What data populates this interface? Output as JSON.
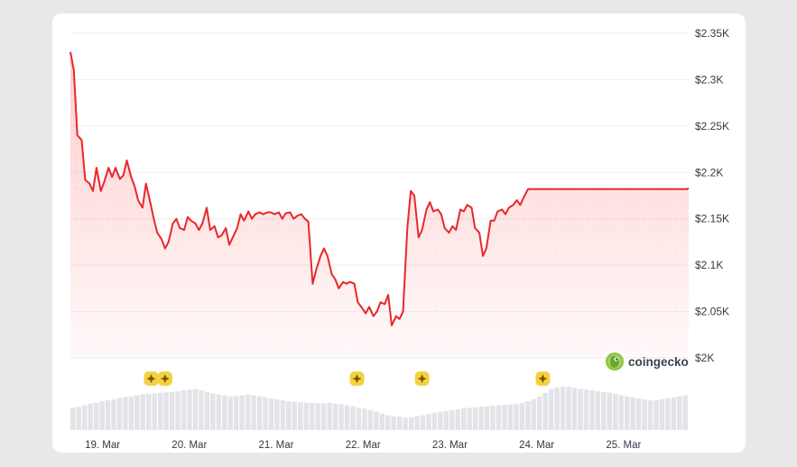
{
  "chart_data": {
    "type": "line",
    "title": "",
    "xlabel": "",
    "ylabel": "",
    "ylim": [
      2000,
      2350
    ],
    "y_ticks": [
      2000,
      2050,
      2100,
      2150,
      2200,
      2250,
      2300,
      2350
    ],
    "y_tick_labels": [
      "$2K",
      "$2.05K",
      "$2.1K",
      "$2.15K",
      "$2.2K",
      "$2.25K",
      "$2.3K",
      "$2.35K"
    ],
    "x_tick_labels": [
      "19. Mar",
      "20. Mar",
      "21. Mar",
      "22. Mar",
      "23. Mar",
      "24. Mar",
      "25. Mar"
    ],
    "x_tick_days": [
      1,
      2,
      3,
      4,
      5,
      6,
      7
    ],
    "xlim_days": [
      0.63,
      7.75
    ],
    "grid": true,
    "line_color": "#e8282b",
    "series": [
      {
        "x_days": [
          0.63,
          0.67,
          0.71,
          0.76,
          0.8,
          0.85,
          0.89,
          0.93,
          0.98,
          1.02,
          1.07,
          1.11,
          1.15,
          1.2,
          1.24,
          1.28,
          1.33,
          1.37,
          1.41,
          1.46,
          1.5,
          1.54,
          1.59,
          1.63,
          1.68,
          1.72,
          1.76,
          1.81,
          1.85,
          1.89,
          1.94,
          1.98,
          2.02,
          2.07,
          2.11,
          2.15,
          2.2,
          2.24,
          2.29,
          2.33,
          2.37,
          2.42,
          2.46,
          2.5,
          2.55,
          2.59,
          2.63,
          2.68,
          2.72,
          2.76,
          2.81,
          2.85,
          2.9,
          2.94,
          2.98,
          3.03,
          3.07,
          3.11,
          3.16,
          3.2,
          3.24,
          3.29,
          3.33,
          3.37,
          3.42,
          3.46,
          3.51,
          3.55,
          3.59,
          3.64,
          3.68,
          3.72,
          3.77,
          3.81,
          3.85,
          3.9,
          3.94,
          3.98,
          4.03,
          4.07,
          4.12,
          4.16,
          4.2,
          4.25,
          4.29,
          4.33,
          4.38,
          4.42,
          4.46,
          4.51,
          4.55,
          4.59,
          4.64,
          4.68,
          4.73,
          4.77,
          4.81,
          4.86,
          4.9,
          4.94,
          4.99,
          5.03,
          5.07,
          5.12,
          5.16,
          5.2,
          5.25,
          5.29,
          5.34,
          5.38,
          5.42,
          5.47,
          5.51,
          5.55,
          5.6,
          5.64,
          5.68,
          5.73,
          5.77,
          5.81,
          5.86,
          5.9,
          5.95,
          5.99,
          6.03,
          6.08,
          6.12,
          6.16,
          6.21,
          6.25,
          6.29,
          6.34,
          6.38,
          6.42,
          6.47,
          6.51,
          6.56,
          6.6,
          6.64,
          6.69,
          6.73,
          6.77,
          6.82,
          6.86,
          6.9,
          6.95,
          6.99,
          7.03,
          7.08,
          7.12,
          7.17,
          7.21,
          7.25,
          7.3,
          7.34,
          7.38,
          7.43,
          7.47,
          7.51,
          7.56,
          7.6,
          7.64,
          7.69,
          7.73,
          7.75
        ],
        "values": [
          2330,
          2310,
          2240,
          2235,
          2192,
          2188,
          2180,
          2205,
          2180,
          2190,
          2205,
          2195,
          2205,
          2193,
          2197,
          2213,
          2195,
          2185,
          2170,
          2162,
          2188,
          2172,
          2150,
          2135,
          2128,
          2118,
          2125,
          2145,
          2150,
          2140,
          2138,
          2152,
          2148,
          2145,
          2138,
          2145,
          2162,
          2138,
          2142,
          2130,
          2132,
          2140,
          2122,
          2130,
          2140,
          2155,
          2148,
          2158,
          2150,
          2155,
          2157,
          2155,
          2157,
          2157,
          2155,
          2157,
          2150,
          2156,
          2157,
          2150,
          2153,
          2155,
          2150,
          2147,
          2080,
          2095,
          2110,
          2118,
          2110,
          2090,
          2085,
          2075,
          2082,
          2080,
          2082,
          2080,
          2060,
          2055,
          2048,
          2055,
          2045,
          2050,
          2060,
          2058,
          2068,
          2035,
          2045,
          2042,
          2050,
          2140,
          2180,
          2175,
          2130,
          2138,
          2160,
          2168,
          2158,
          2160,
          2155,
          2140,
          2135,
          2142,
          2138,
          2160,
          2158,
          2165,
          2162,
          2140,
          2135,
          2110,
          2118,
          2148,
          2148,
          2158,
          2160,
          2155,
          2162,
          2165,
          2170,
          2165,
          2175,
          2182,
          2182,
          2182,
          2182,
          2182,
          2182,
          2182,
          2182,
          2182,
          2182,
          2182,
          2182,
          2182,
          2182,
          2182,
          2182,
          2182,
          2182,
          2182,
          2182,
          2182,
          2182,
          2182,
          2182,
          2182,
          2182,
          2182,
          2182,
          2182,
          2182,
          2182,
          2182,
          2182,
          2182,
          2182,
          2182,
          2182,
          2182,
          2182,
          2182,
          2182,
          2182,
          2182,
          2183
        ]
      }
    ],
    "volume": {
      "values": [
        0.45,
        0.47,
        0.5,
        0.53,
        0.55,
        0.58,
        0.6,
        0.62,
        0.65,
        0.67,
        0.68,
        0.7,
        0.72,
        0.73,
        0.74,
        0.75,
        0.76,
        0.77,
        0.78,
        0.8,
        0.82,
        0.83,
        0.8,
        0.77,
        0.74,
        0.72,
        0.7,
        0.68,
        0.68,
        0.7,
        0.72,
        0.7,
        0.68,
        0.66,
        0.64,
        0.62,
        0.6,
        0.58,
        0.57,
        0.56,
        0.55,
        0.55,
        0.54,
        0.54,
        0.55,
        0.53,
        0.52,
        0.5,
        0.48,
        0.45,
        0.43,
        0.4,
        0.37,
        0.33,
        0.3,
        0.28,
        0.27,
        0.25,
        0.26,
        0.28,
        0.3,
        0.32,
        0.35,
        0.37,
        0.38,
        0.4,
        0.42,
        0.44,
        0.45,
        0.46,
        0.47,
        0.48,
        0.49,
        0.5,
        0.51,
        0.52,
        0.53,
        0.55,
        0.58,
        0.62,
        0.68,
        0.75,
        0.82,
        0.86,
        0.88,
        0.87,
        0.85,
        0.83,
        0.82,
        0.8,
        0.78,
        0.77,
        0.75,
        0.73,
        0.7,
        0.68,
        0.66,
        0.64,
        0.62,
        0.6,
        0.6,
        0.62,
        0.64,
        0.66,
        0.68,
        0.7
      ],
      "color": "#e3e4e8"
    },
    "event_markers": {
      "x_days": [
        1.56,
        1.72,
        3.93,
        4.68,
        6.07
      ],
      "color": "#f5d142"
    }
  },
  "brand": {
    "name": "coingecko",
    "icon": "coingecko-gecko-icon"
  }
}
